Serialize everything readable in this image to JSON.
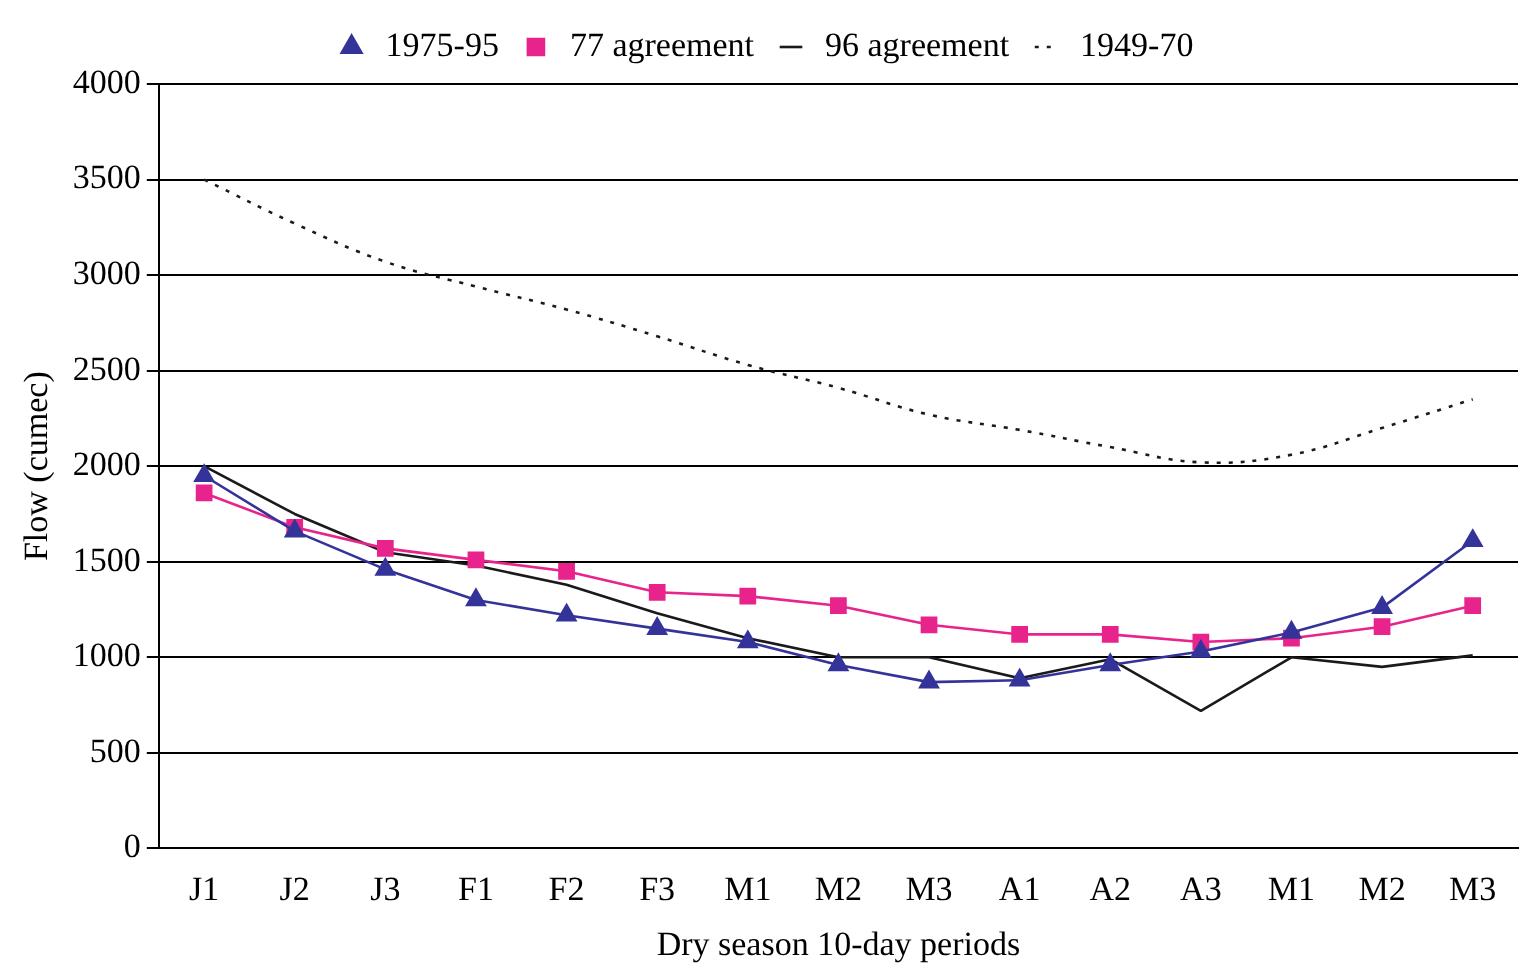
{
  "chart_data": {
    "type": "line",
    "xlabel": "Dry season 10-day periods",
    "ylabel": "Flow (cumec)",
    "categories": [
      "J1",
      "J2",
      "J3",
      "F1",
      "F2",
      "F3",
      "M1",
      "M2",
      "M3",
      "A1",
      "A2",
      "A3",
      "M1",
      "M2",
      "M3"
    ],
    "series": [
      {
        "name": "1975-95",
        "color": "#333399",
        "marker": "triangle",
        "line_style": "solid",
        "values": [
          1950,
          1660,
          1460,
          1300,
          1220,
          1150,
          1080,
          960,
          870,
          880,
          960,
          1030,
          1130,
          1260,
          1610
        ]
      },
      {
        "name": "77 agreement",
        "color": "#e8238c",
        "marker": "square",
        "line_style": "solid",
        "values": [
          1860,
          1680,
          1570,
          1510,
          1450,
          1340,
          1320,
          1270,
          1170,
          1120,
          1120,
          1080,
          1100,
          1160,
          1270
        ]
      },
      {
        "name": "96 agreement",
        "color": "#1a1a1a",
        "marker": "none",
        "line_style": "solid",
        "values": [
          2000,
          1750,
          1550,
          1480,
          1380,
          1230,
          1100,
          1000,
          1000,
          890,
          990,
          720,
          1000,
          950,
          1010
        ]
      },
      {
        "name": "1949-70",
        "color": "#1a1a1a",
        "marker": "none",
        "line_style": "dotted",
        "values": [
          3500,
          3270,
          3070,
          2940,
          2820,
          2680,
          2530,
          2410,
          2270,
          2190,
          2100,
          2020,
          2060,
          2200,
          2350
        ]
      }
    ],
    "ylim": [
      0,
      4000
    ],
    "yticks": [
      0,
      500,
      1000,
      1500,
      2000,
      2500,
      3000,
      3500,
      4000
    ],
    "grid": "y",
    "legend": "top"
  }
}
